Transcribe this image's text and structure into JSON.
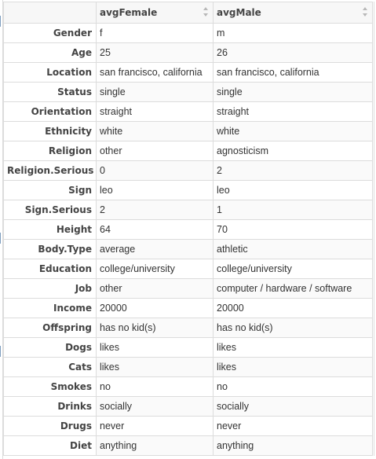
{
  "table": {
    "columns": [
      "",
      "avgFemale",
      "avgMale"
    ],
    "rows": [
      {
        "label": "Gender",
        "avgFemale": "f",
        "avgMale": "m"
      },
      {
        "label": "Age",
        "avgFemale": "25",
        "avgMale": "26"
      },
      {
        "label": "Location",
        "avgFemale": "san francisco, california",
        "avgMale": "san francisco, california"
      },
      {
        "label": "Status",
        "avgFemale": "single",
        "avgMale": "single"
      },
      {
        "label": "Orientation",
        "avgFemale": "straight",
        "avgMale": "straight"
      },
      {
        "label": "Ethnicity",
        "avgFemale": "white",
        "avgMale": "white"
      },
      {
        "label": "Religion",
        "avgFemale": "other",
        "avgMale": "agnosticism"
      },
      {
        "label": "Religion.Serious",
        "avgFemale": "0",
        "avgMale": "2"
      },
      {
        "label": "Sign",
        "avgFemale": "leo",
        "avgMale": "leo"
      },
      {
        "label": "Sign.Serious",
        "avgFemale": "2",
        "avgMale": "1"
      },
      {
        "label": "Height",
        "avgFemale": "64",
        "avgMale": "70"
      },
      {
        "label": "Body.Type",
        "avgFemale": "average",
        "avgMale": "athletic"
      },
      {
        "label": "Education",
        "avgFemale": "college/university",
        "avgMale": "college/university"
      },
      {
        "label": "Job",
        "avgFemale": "other",
        "avgMale": "computer / hardware / software"
      },
      {
        "label": "Income",
        "avgFemale": "20000",
        "avgMale": "20000"
      },
      {
        "label": "Offspring",
        "avgFemale": "has no kid(s)",
        "avgMale": "has no kid(s)"
      },
      {
        "label": "Dogs",
        "avgFemale": "likes",
        "avgMale": "likes"
      },
      {
        "label": "Cats",
        "avgFemale": "likes",
        "avgMale": "likes"
      },
      {
        "label": "Smokes",
        "avgFemale": "no",
        "avgMale": "no"
      },
      {
        "label": "Drinks",
        "avgFemale": "socially",
        "avgMale": "socially"
      },
      {
        "label": "Drugs",
        "avgFemale": "never",
        "avgMale": "never"
      },
      {
        "label": "Diet",
        "avgFemale": "anything",
        "avgMale": "anything"
      }
    ]
  },
  "icons": {
    "sort": "sort-arrows-icon"
  },
  "colors": {
    "border": "#dcdcdc",
    "header_bg": "#f7f7f7",
    "text": "#333333"
  }
}
